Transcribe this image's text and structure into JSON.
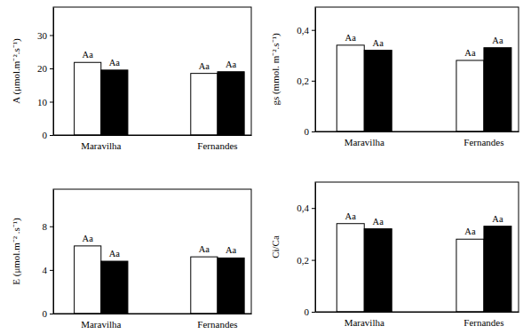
{
  "chart_data": [
    {
      "type": "bar",
      "y_label": "A (μmol.m⁻².s⁻¹)",
      "categories": [
        "Maravilha",
        "Fernandes"
      ],
      "series": [
        {
          "color": "#ffffff",
          "values": [
            21.8,
            18.5
          ],
          "annotations": [
            "Aa",
            "Aa"
          ]
        },
        {
          "color": "#000000",
          "values": [
            19.5,
            19.0
          ],
          "annotations": [
            "Aa",
            "Aa"
          ]
        }
      ],
      "ylim": [
        0,
        38.4
      ],
      "yticks": [
        0,
        10,
        20,
        30
      ]
    },
    {
      "type": "bar",
      "y_label": "gs (mmol. m⁻².s⁻¹)",
      "categories": [
        "Maravilha",
        "Fernandes"
      ],
      "series": [
        {
          "color": "#ffffff",
          "values": [
            0.34,
            0.28
          ],
          "annotations": [
            "Aa",
            "Aa"
          ]
        },
        {
          "color": "#000000",
          "values": [
            0.32,
            0.33
          ],
          "annotations": [
            "Aa",
            "Aa"
          ]
        }
      ],
      "ylim": [
        0,
        0.49
      ],
      "yticks": [
        0,
        {
          "value": 0.2,
          "label": "0,2"
        },
        {
          "value": 0.4,
          "label": "0,4"
        }
      ]
    },
    {
      "type": "bar",
      "y_label": "E (μmol.m⁻² .s⁻¹)",
      "categories": [
        "Maravilha",
        "Fernandes"
      ],
      "series": [
        {
          "color": "#ffffff",
          "values": [
            6.2,
            5.2
          ],
          "annotations": [
            "Aa",
            "Aa"
          ]
        },
        {
          "color": "#000000",
          "values": [
            4.8,
            5.1
          ],
          "annotations": [
            "Aa",
            "Aa"
          ]
        }
      ],
      "ylim": [
        0,
        11.4
      ],
      "yticks": [
        0,
        4,
        8
      ]
    },
    {
      "type": "bar",
      "y_label": "Ci/Ca",
      "categories": [
        "Maravilha",
        "Fernandes"
      ],
      "series": [
        {
          "color": "#ffffff",
          "values": [
            0.34,
            0.28
          ],
          "annotations": [
            "Aa",
            "Aa"
          ]
        },
        {
          "color": "#000000",
          "values": [
            0.32,
            0.33
          ],
          "annotations": [
            "Aa",
            "Aa"
          ]
        }
      ],
      "ylim": [
        0,
        0.5
      ],
      "yticks": [
        0,
        {
          "value": 0.2,
          "label": "0,2"
        },
        {
          "value": 0.4,
          "label": "0,4"
        }
      ]
    }
  ]
}
